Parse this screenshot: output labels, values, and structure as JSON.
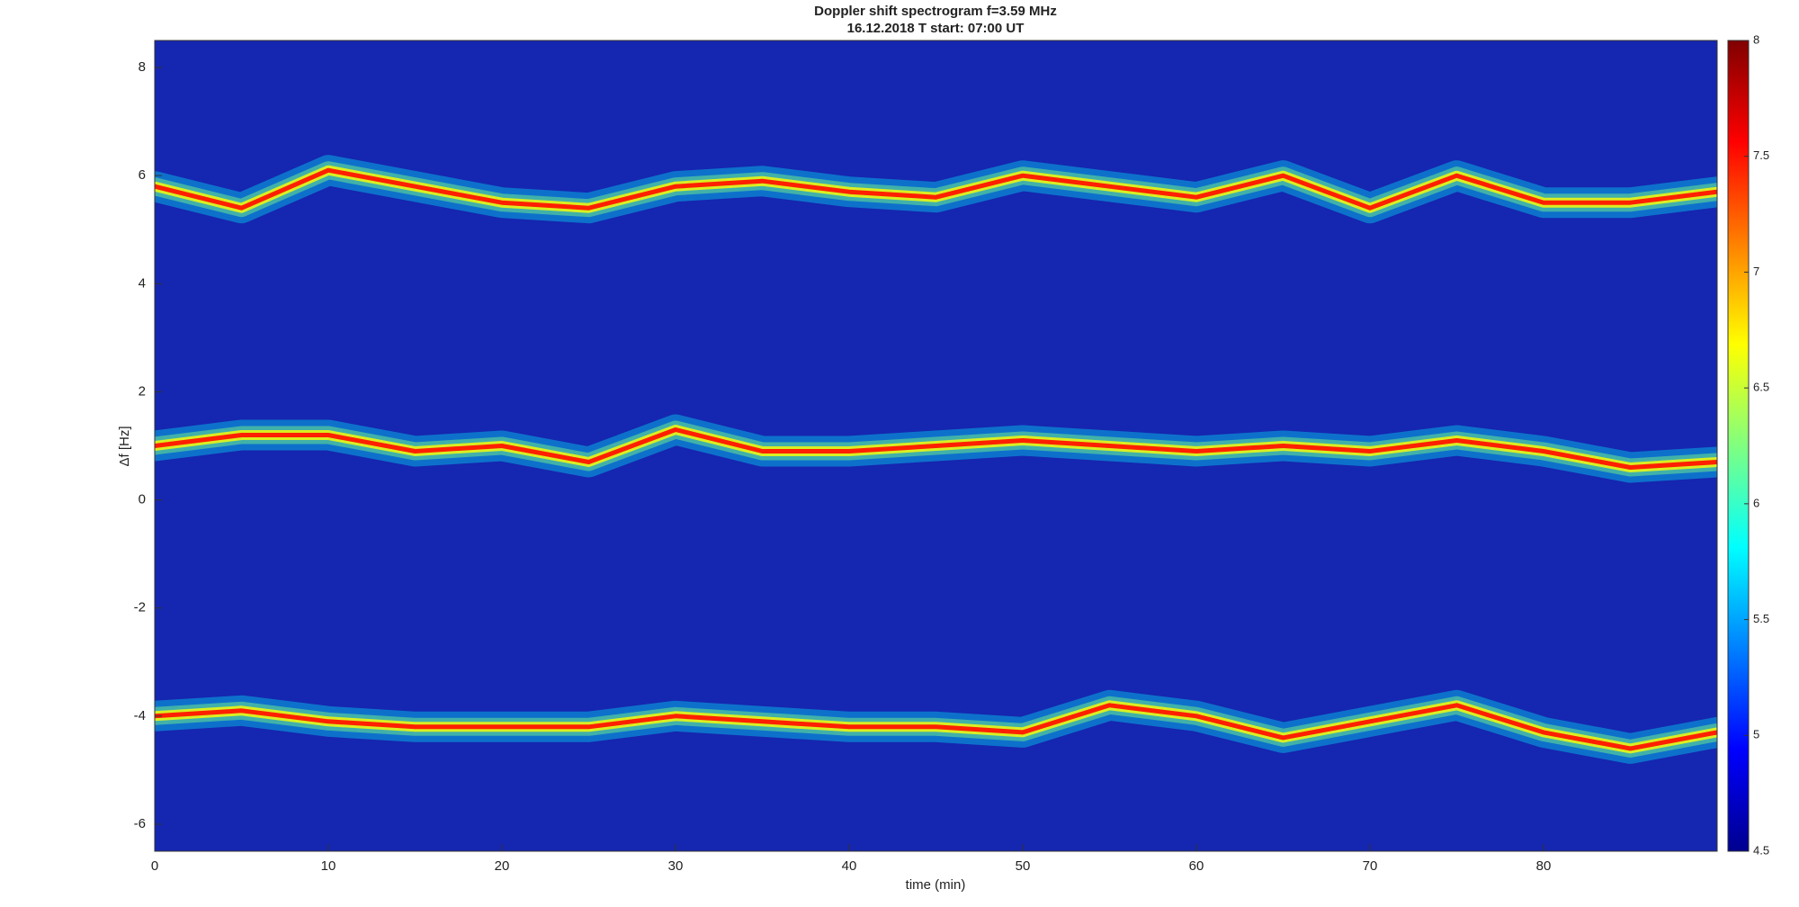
{
  "chart_data": {
    "type": "spectrogram",
    "title": "Doppler shift spectrogram f=3.59 MHz",
    "subtitle": "16.12.2018   T start: 07:00 UT",
    "xlabel": "time (min)",
    "ylabel": "Δf [Hz]",
    "xlim": [
      0,
      90
    ],
    "xticks": [
      0,
      10,
      20,
      30,
      40,
      50,
      60,
      70,
      80
    ],
    "ylim": [
      -6.5,
      8.5
    ],
    "yticks": [
      -6,
      -4,
      -2,
      0,
      2,
      4,
      6,
      8
    ],
    "clim": [
      4.5,
      8
    ],
    "cticks": [
      4.5,
      5,
      5.5,
      6,
      6.5,
      7,
      7.5,
      8
    ],
    "colormap": [
      "#00008f",
      "#0000ff",
      "#0080ff",
      "#00ffff",
      "#80ff80",
      "#ffff00",
      "#ff8000",
      "#ff0000",
      "#800000"
    ],
    "background_color": "#1526b0",
    "x": [
      0,
      5,
      10,
      15,
      20,
      25,
      30,
      35,
      40,
      45,
      50,
      55,
      60,
      65,
      70,
      75,
      80,
      85,
      90
    ],
    "series": [
      {
        "color": "#ff2000",
        "values": [
          5.8,
          5.4,
          6.1,
          5.8,
          5.5,
          5.4,
          5.8,
          5.9,
          5.7,
          5.6,
          6.0,
          5.8,
          5.6,
          6.0,
          5.4,
          6.0,
          5.5,
          5.5,
          5.7
        ]
      },
      {
        "color": "#ff2000",
        "values": [
          1.0,
          1.2,
          1.2,
          0.9,
          1.0,
          0.7,
          1.3,
          0.9,
          0.9,
          1.0,
          1.1,
          1.0,
          0.9,
          1.0,
          0.9,
          1.1,
          0.9,
          0.6,
          0.7
        ]
      },
      {
        "color": "#ff2000",
        "values": [
          -4.0,
          -3.9,
          -4.1,
          -4.2,
          -4.2,
          -4.2,
          -4.0,
          -4.1,
          -4.2,
          -4.2,
          -4.3,
          -3.8,
          -4.0,
          -4.4,
          -4.1,
          -3.8,
          -4.3,
          -4.6,
          -4.3
        ]
      }
    ]
  }
}
